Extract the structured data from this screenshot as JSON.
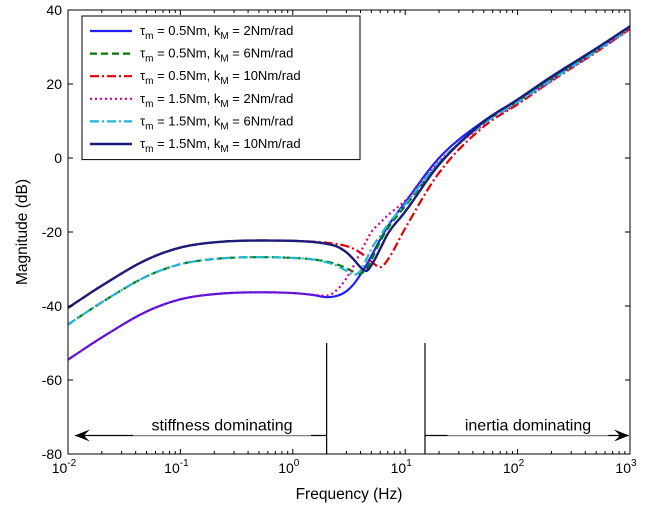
{
  "chart_data": {
    "type": "line",
    "xlabel": "Frequency (Hz)",
    "ylabel": "Magnitude (dB)",
    "x_scale": "log",
    "xlim": [
      0.01,
      1000
    ],
    "ylim": [
      -80,
      40
    ],
    "grid": false,
    "legend_position": "top-left",
    "x_ticks": [
      {
        "base": "10",
        "exp": "-2",
        "value": 0.01
      },
      {
        "base": "10",
        "exp": "-1",
        "value": 0.1
      },
      {
        "base": "10",
        "exp": "0",
        "value": 1
      },
      {
        "base": "10",
        "exp": "1",
        "value": 10
      },
      {
        "base": "10",
        "exp": "2",
        "value": 100
      },
      {
        "base": "10",
        "exp": "3",
        "value": 1000
      }
    ],
    "y_ticks": [
      {
        "label": "-80",
        "value": -80
      },
      {
        "label": "-60",
        "value": -60
      },
      {
        "label": "-40",
        "value": -40
      },
      {
        "label": "-20",
        "value": -20
      },
      {
        "label": "0",
        "value": 0
      },
      {
        "label": "20",
        "value": 20
      },
      {
        "label": "40",
        "value": 40
      }
    ],
    "series": [
      {
        "name": "τm = 0.5Nm, kM = 2Nm/rad",
        "legend": {
          "tau": "τ",
          "tau_sub": "m",
          "tau_val": " = 0.5Nm, k",
          "k_sub": "M",
          "k_val": " = 2Nm/rad"
        },
        "color": "#1f1fff",
        "dash": "",
        "width": 2.2,
        "x": [
          0.01,
          0.02,
          0.05,
          0.1,
          0.2,
          0.5,
          1,
          1.5,
          2,
          2.5,
          3,
          3.5,
          4,
          4.5,
          5,
          6,
          7,
          10,
          20,
          50,
          100,
          200,
          500,
          1000
        ],
        "y": [
          -54.5,
          -48.5,
          -41.5,
          -38.2,
          -36.8,
          -36.3,
          -36.5,
          -37.0,
          -37.6,
          -37.2,
          -36.0,
          -34.0,
          -31.5,
          -29.0,
          -26.5,
          -22.0,
          -18.5,
          -12.0,
          0.0,
          10.0,
          15.6,
          21.5,
          29.2,
          35.3
        ]
      },
      {
        "name": "τm = 0.5Nm, kM = 6Nm/rad",
        "legend": {
          "tau": "τ",
          "tau_sub": "m",
          "tau_val": " = 0.5Nm, k",
          "k_sub": "M",
          "k_val": " = 6Nm/rad"
        },
        "color": "#007a00",
        "dash": "7,4",
        "width": 2.2,
        "x": [
          0.01,
          0.02,
          0.05,
          0.1,
          0.2,
          0.5,
          1,
          1.5,
          2,
          2.5,
          3,
          3.5,
          4,
          4.5,
          5,
          6,
          7,
          10,
          20,
          50,
          100,
          200,
          500,
          1000
        ],
        "y": [
          -45.0,
          -39.0,
          -32.0,
          -28.7,
          -27.3,
          -26.8,
          -27.0,
          -27.4,
          -28.0,
          -28.8,
          -29.8,
          -30.8,
          -31.2,
          -30.0,
          -27.5,
          -22.5,
          -19.0,
          -13.0,
          -1.5,
          9.5,
          15.3,
          21.3,
          29.1,
          35.3
        ]
      },
      {
        "name": "τm = 0.5Nm, kM = 10Nm/rad",
        "legend": {
          "tau": "τ",
          "tau_sub": "m",
          "tau_val": " = 0.5Nm, k",
          "k_sub": "M",
          "k_val": " = 10Nm/rad"
        },
        "color": "#e00000",
        "dash": "9,3,2,3",
        "width": 2.2,
        "x": [
          0.01,
          0.02,
          0.05,
          0.1,
          0.2,
          0.5,
          1,
          1.5,
          2,
          2.5,
          3,
          3.5,
          4,
          4.5,
          5,
          6,
          7,
          10,
          20,
          50,
          100,
          200,
          500,
          1000
        ],
        "y": [
          -40.5,
          -34.5,
          -27.5,
          -24.2,
          -22.8,
          -22.3,
          -22.4,
          -22.6,
          -22.9,
          -23.3,
          -23.8,
          -24.6,
          -25.6,
          -26.8,
          -28.0,
          -29.5,
          -27.5,
          -19.0,
          -4.0,
          8.5,
          14.5,
          20.8,
          28.6,
          34.9
        ]
      },
      {
        "name": "τm = 1.5Nm, kM = 2Nm/rad",
        "legend": {
          "tau": "τ",
          "tau_sub": "m",
          "tau_val": " = 1.5Nm, k",
          "k_sub": "M",
          "k_val": " = 2Nm/rad"
        },
        "color": "#cc0099",
        "dash": "2,3",
        "width": 2.2,
        "x": [
          0.01,
          0.02,
          0.05,
          0.1,
          0.2,
          0.5,
          1,
          1.5,
          2,
          2.5,
          3,
          3.5,
          4,
          4.5,
          5,
          6,
          7,
          10,
          20,
          50,
          100,
          200,
          500,
          1000
        ],
        "y": [
          -54.5,
          -48.5,
          -41.5,
          -38.2,
          -36.8,
          -36.3,
          -36.5,
          -37.0,
          -37.2,
          -35.5,
          -32.5,
          -29.0,
          -25.5,
          -22.5,
          -20.0,
          -17.5,
          -15.5,
          -11.5,
          -1.0,
          9.0,
          14.8,
          20.8,
          28.7,
          34.8
        ]
      },
      {
        "name": "τm = 1.5Nm, kM = 6Nm/rad",
        "legend": {
          "tau": "τ",
          "tau_sub": "m",
          "tau_val": " = 1.5Nm, k",
          "k_sub": "M",
          "k_val": " = 6Nm/rad"
        },
        "color": "#22b5d6",
        "dash": "9,3,2,3",
        "width": 2.2,
        "x": [
          0.01,
          0.02,
          0.05,
          0.1,
          0.2,
          0.5,
          1,
          1.5,
          2,
          2.5,
          3,
          3.5,
          4,
          4.5,
          5,
          6,
          7,
          10,
          20,
          50,
          100,
          200,
          500,
          1000
        ],
        "y": [
          -45.0,
          -39.0,
          -32.0,
          -28.7,
          -27.3,
          -26.8,
          -27.0,
          -27.4,
          -28.2,
          -29.2,
          -30.5,
          -31.5,
          -30.5,
          -27.5,
          -24.5,
          -21.0,
          -18.0,
          -12.5,
          -1.2,
          9.3,
          15.1,
          21.1,
          28.9,
          35.1
        ]
      },
      {
        "name": "τm = 1.5Nm, kM = 10Nm/rad",
        "legend": {
          "tau": "τ",
          "tau_sub": "m",
          "tau_val": " = 1.5Nm, k",
          "k_sub": "M",
          "k_val": " = 10Nm/rad"
        },
        "color": "#1c1c7a",
        "dash": "",
        "width": 2.4,
        "x": [
          0.01,
          0.02,
          0.05,
          0.1,
          0.2,
          0.5,
          1,
          1.5,
          2,
          2.5,
          3,
          3.5,
          4,
          4.5,
          5,
          6,
          7,
          10,
          20,
          50,
          100,
          200,
          500,
          1000
        ],
        "y": [
          -40.5,
          -34.5,
          -27.5,
          -24.2,
          -22.8,
          -22.3,
          -22.4,
          -22.7,
          -23.2,
          -24.0,
          -25.5,
          -27.5,
          -29.5,
          -30.5,
          -29.0,
          -24.5,
          -20.5,
          -14.5,
          -1.8,
          9.8,
          15.8,
          22.0,
          29.6,
          35.6
        ]
      }
    ],
    "annotations": {
      "vlines": [
        2,
        15
      ],
      "left_text": "stiffness dominating",
      "right_text": "inertia dominating",
      "left_arrow": {
        "from": 2,
        "to": 0.0115,
        "y": -75
      },
      "right_arrow": {
        "from": 15,
        "to": 980,
        "y": -75
      },
      "vline_top": -50
    }
  }
}
